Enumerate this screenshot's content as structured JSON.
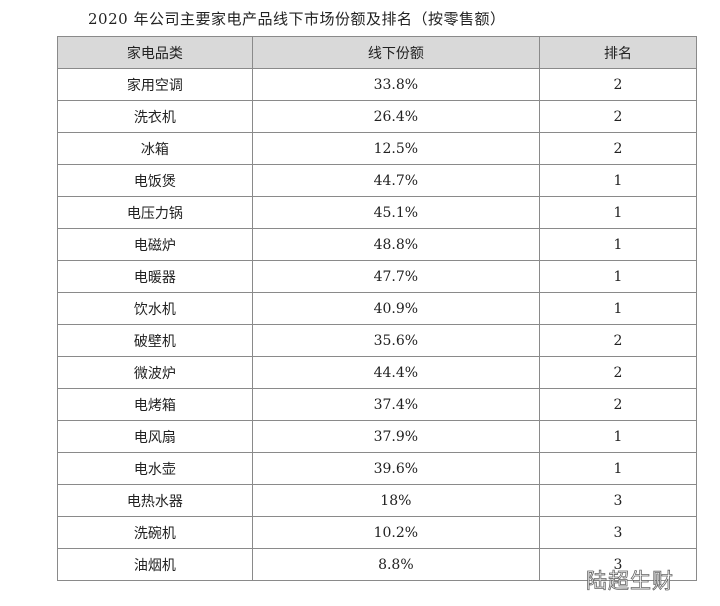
{
  "title": "2020 年公司主要家电产品线下市场份额及排名（按零售额）",
  "headers": [
    "家电品类",
    "线下份额",
    "排名"
  ],
  "rows": [
    [
      "家用空调",
      "33.8%",
      "2"
    ],
    [
      "洗衣机",
      "26.4%",
      "2"
    ],
    [
      "冰箱",
      "12.5%",
      "2"
    ],
    [
      "电饭煲",
      "44.7%",
      "1"
    ],
    [
      "电压力锅",
      "45.1%",
      "1"
    ],
    [
      "电磁炉",
      "48.8%",
      "1"
    ],
    [
      "电暖器",
      "47.7%",
      "1"
    ],
    [
      "饮水机",
      "40.9%",
      "1"
    ],
    [
      "破壁机",
      "35.6%",
      "2"
    ],
    [
      "微波炉",
      "44.4%",
      "2"
    ],
    [
      "电烤箱",
      "37.4%",
      "2"
    ],
    [
      "电风扇",
      "37.9%",
      "1"
    ],
    [
      "电水壶",
      "39.6%",
      "1"
    ],
    [
      "电热水器",
      "18%",
      "3"
    ],
    [
      "洗碗机",
      "10.2%",
      "3"
    ],
    [
      "油烟机",
      "8.8%",
      "3"
    ]
  ],
  "watermark": "陆超生财"
}
